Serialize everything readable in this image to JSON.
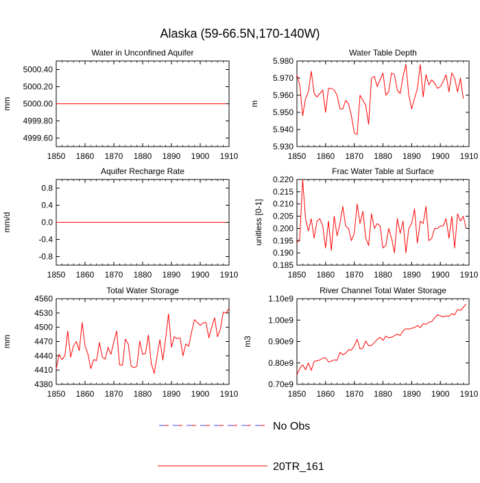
{
  "figure": {
    "title": "Alaska (59-66.5N,170-140W)",
    "legend": [
      {
        "label": "No Obs",
        "style": "dashed",
        "color": "#4040ff",
        "color2": "#ff0000"
      },
      {
        "label": "20TR_161",
        "style": "solid",
        "color": "#ff0000"
      }
    ]
  },
  "chart_data": [
    {
      "type": "line",
      "title": "Water in Unconfined Aquifer",
      "ylabel": "mm",
      "xlim": [
        1850,
        1910
      ],
      "ylim": [
        4999.5,
        5000.5
      ],
      "xticks": [
        1850,
        1860,
        1870,
        1880,
        1890,
        1900,
        1910
      ],
      "yticks": [
        4999.6,
        4999.8,
        5000.0,
        5000.2,
        5000.4
      ],
      "ytick_labels": [
        "4999.60",
        "4999.80",
        "5000.00",
        "5000.20",
        "5000.40"
      ],
      "series": [
        {
          "name": "20TR_161",
          "x_start": 1850,
          "x_step": 1,
          "values": [
            5000,
            5000,
            5000,
            5000,
            5000,
            5000,
            5000,
            5000,
            5000,
            5000,
            5000,
            5000,
            5000,
            5000,
            5000,
            5000,
            5000,
            5000,
            5000,
            5000,
            5000,
            5000,
            5000,
            5000,
            5000,
            5000,
            5000,
            5000,
            5000,
            5000,
            5000,
            5000,
            5000,
            5000,
            5000,
            5000,
            5000,
            5000,
            5000,
            5000,
            5000,
            5000,
            5000,
            5000,
            5000,
            5000,
            5000,
            5000,
            5000,
            5000,
            5000,
            5000,
            5000,
            5000,
            5000,
            5000,
            5000,
            5000,
            5000,
            5000
          ]
        }
      ]
    },
    {
      "type": "line",
      "title": "Water Table Depth",
      "ylabel": "m",
      "xlim": [
        1850,
        1910
      ],
      "ylim": [
        5.93,
        5.98
      ],
      "xticks": [
        1850,
        1860,
        1870,
        1880,
        1890,
        1900,
        1910
      ],
      "yticks": [
        5.93,
        5.94,
        5.95,
        5.96,
        5.97,
        5.98
      ],
      "ytick_labels": [
        "5.930",
        "5.940",
        "5.950",
        "5.960",
        "5.970",
        "5.980"
      ],
      "series": [
        {
          "name": "20TR_161",
          "x_start": 1850,
          "x_step": 1,
          "values": [
            5.972,
            5.966,
            5.948,
            5.958,
            5.962,
            5.974,
            5.961,
            5.959,
            5.961,
            5.963,
            5.95,
            5.964,
            5.964,
            5.963,
            5.96,
            5.952,
            5.952,
            5.957,
            5.955,
            5.948,
            5.938,
            5.937,
            5.96,
            5.957,
            5.954,
            5.943,
            5.97,
            5.971,
            5.965,
            5.969,
            5.973,
            5.96,
            5.962,
            5.973,
            5.972,
            5.963,
            5.961,
            5.971,
            5.978,
            5.96,
            5.952,
            5.958,
            5.964,
            5.978,
            5.959,
            5.972,
            5.966,
            5.969,
            5.967,
            5.964,
            5.965,
            5.968,
            5.972,
            5.962,
            5.973,
            5.97,
            5.962,
            5.97,
            5.958
          ]
        }
      ]
    },
    {
      "type": "line",
      "title": "Aquifer Recharge Rate",
      "ylabel": "mm/d",
      "xlim": [
        1850,
        1910
      ],
      "ylim": [
        -1.0,
        1.0
      ],
      "xticks": [
        1850,
        1860,
        1870,
        1880,
        1890,
        1900,
        1910
      ],
      "yticks": [
        -0.8,
        -0.4,
        0.0,
        0.4,
        0.8
      ],
      "ytick_labels": [
        "-0.8",
        "-0.4",
        "0.0",
        "0.4",
        "0.8"
      ],
      "series": [
        {
          "name": "20TR_161",
          "x_start": 1850,
          "x_step": 1,
          "values": [
            0,
            0,
            0,
            0,
            0,
            0,
            0,
            0,
            0,
            0,
            0,
            0,
            0,
            0,
            0,
            0,
            0,
            0,
            0,
            0,
            0,
            0,
            0,
            0,
            0,
            0,
            0,
            0,
            0,
            0,
            0,
            0,
            0,
            0,
            0,
            0,
            0,
            0,
            0,
            0,
            0,
            0,
            0,
            0,
            0,
            0,
            0,
            0,
            0,
            0,
            0,
            0,
            0,
            0,
            0,
            0,
            0,
            0,
            0,
            0
          ]
        }
      ]
    },
    {
      "type": "line",
      "title": "Frac Water Table at Surface",
      "ylabel": "unitless [0-1]",
      "xlim": [
        1850,
        1910
      ],
      "ylim": [
        0.185,
        0.22
      ],
      "xticks": [
        1850,
        1860,
        1870,
        1880,
        1890,
        1900,
        1910
      ],
      "yticks": [
        0.185,
        0.19,
        0.195,
        0.2,
        0.205,
        0.21,
        0.215,
        0.22
      ],
      "ytick_labels": [
        "0.185",
        "0.190",
        "0.195",
        "0.200",
        "0.205",
        "0.210",
        "0.215",
        "0.220"
      ],
      "series": [
        {
          "name": "20TR_161",
          "x_start": 1850,
          "x_step": 1,
          "values": [
            0.194,
            0.196,
            0.22,
            0.204,
            0.199,
            0.204,
            0.196,
            0.203,
            0.204,
            0.201,
            0.192,
            0.203,
            0.191,
            0.205,
            0.197,
            0.202,
            0.209,
            0.201,
            0.2,
            0.195,
            0.198,
            0.21,
            0.202,
            0.207,
            0.196,
            0.193,
            0.206,
            0.2,
            0.202,
            0.201,
            0.192,
            0.193,
            0.2,
            0.196,
            0.19,
            0.204,
            0.198,
            0.203,
            0.19,
            0.2,
            0.202,
            0.208,
            0.194,
            0.203,
            0.202,
            0.209,
            0.195,
            0.196,
            0.2,
            0.2,
            0.201,
            0.201,
            0.204,
            0.196,
            0.205,
            0.192,
            0.206,
            0.203,
            0.205,
            0.2
          ]
        }
      ]
    },
    {
      "type": "line",
      "title": "Total Water Storage",
      "ylabel": "mm",
      "xlim": [
        1850,
        1910
      ],
      "ylim": [
        4380,
        4560
      ],
      "xticks": [
        1850,
        1860,
        1870,
        1880,
        1890,
        1900,
        1910
      ],
      "yticks": [
        4380,
        4410,
        4440,
        4470,
        4500,
        4530,
        4560
      ],
      "ytick_labels": [
        "4380",
        "4410",
        "4440",
        "4470",
        "4500",
        "4530",
        "4560"
      ],
      "series": [
        {
          "name": "20TR_161",
          "x_start": 1850,
          "x_step": 1,
          "values": [
            4412,
            4443,
            4432,
            4440,
            4492,
            4437,
            4461,
            4470,
            4451,
            4510,
            4461,
            4444,
            4413,
            4432,
            4430,
            4468,
            4437,
            4433,
            4458,
            4443,
            4470,
            4492,
            4421,
            4420,
            4475,
            4465,
            4418,
            4415,
            4418,
            4471,
            4443,
            4445,
            4484,
            4424,
            4403,
            4439,
            4474,
            4431,
            4477,
            4528,
            4458,
            4480,
            4476,
            4478,
            4440,
            4465,
            4460,
            4490,
            4516,
            4510,
            4504,
            4509,
            4510,
            4478,
            4500,
            4520,
            4480,
            4496,
            4532,
            4530,
            4540
          ]
        }
      ]
    },
    {
      "type": "line",
      "title": "River Channel Total Water Storage",
      "ylabel": "m3",
      "xlim": [
        1850,
        1910
      ],
      "ylim": [
        0.7,
        1.1
      ],
      "xticks": [
        1850,
        1860,
        1870,
        1880,
        1890,
        1900,
        1910
      ],
      "yticks": [
        0.7,
        0.8,
        0.9,
        1.0,
        1.1
      ],
      "ytick_labels": [
        "0.70e9",
        "0.80e9",
        "0.90e9",
        "1.00e9",
        "1.10e9"
      ],
      "series": [
        {
          "name": "20TR_161",
          "x_start": 1850,
          "x_step": 1,
          "values": [
            0.745,
            0.774,
            0.791,
            0.768,
            0.8,
            0.765,
            0.807,
            0.81,
            0.814,
            0.822,
            0.824,
            0.805,
            0.808,
            0.815,
            0.812,
            0.85,
            0.838,
            0.845,
            0.862,
            0.86,
            0.88,
            0.91,
            0.865,
            0.87,
            0.902,
            0.88,
            0.882,
            0.895,
            0.91,
            0.92,
            0.905,
            0.925,
            0.918,
            0.92,
            0.927,
            0.935,
            0.928,
            0.95,
            0.96,
            0.958,
            0.962,
            0.965,
            0.975,
            0.965,
            0.983,
            0.98,
            0.99,
            0.993,
            1.01,
            1.025,
            1.02,
            1.015,
            1.02,
            1.018,
            1.03,
            1.025,
            1.05,
            1.045,
            1.06,
            1.075
          ]
        }
      ]
    }
  ]
}
